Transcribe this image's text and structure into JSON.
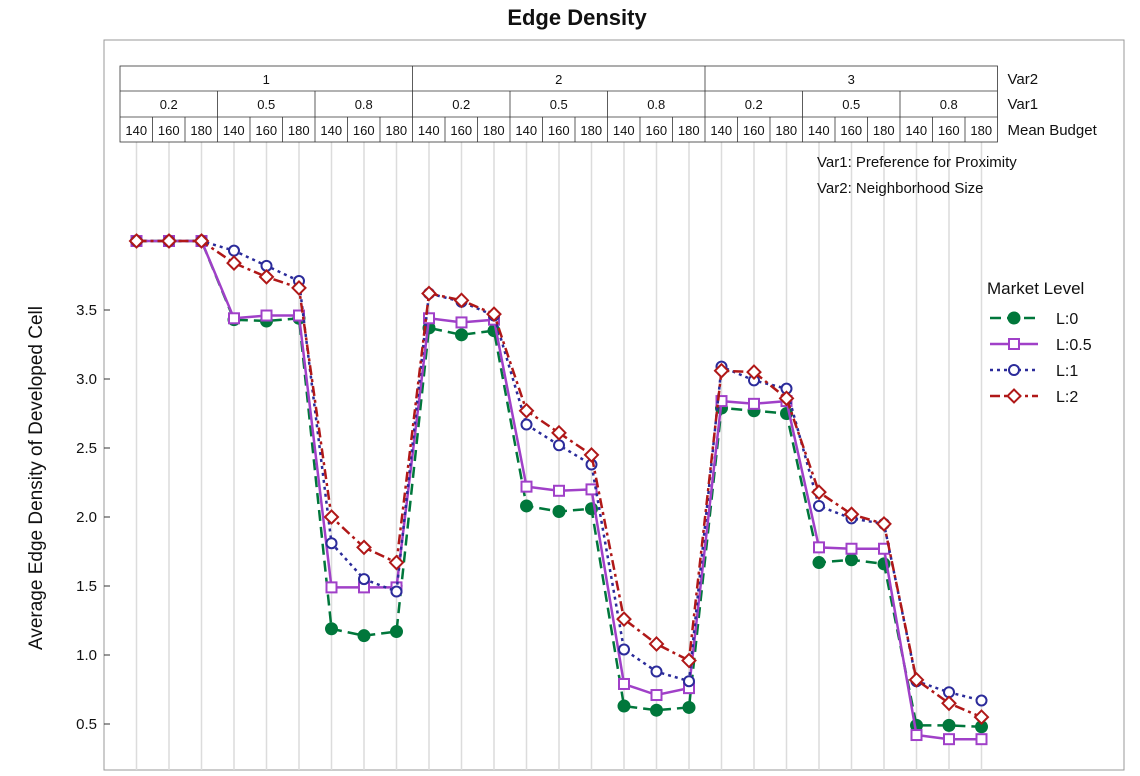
{
  "chart_data": {
    "type": "line",
    "title": "Edge Density",
    "ylabel": "Average Edge Density of Developed Cell",
    "ylim": [
      0.33,
      4.1
    ],
    "yticks": [
      "0.5",
      "1.0",
      "1.5",
      "2.0",
      "2.5",
      "3.0",
      "3.5"
    ],
    "header": {
      "var2_values": [
        "1",
        "2",
        "3"
      ],
      "var1_values": [
        "0.2",
        "0.5",
        "0.8"
      ],
      "budget_values": [
        "140",
        "160",
        "180"
      ],
      "row_labels": [
        "Var2",
        "Var1",
        "Mean Budget"
      ]
    },
    "notes": [
      "Var1: Preference for Proximity",
      "Var2: Neighborhood Size"
    ],
    "legend": {
      "title": "Market Level",
      "position": "right"
    },
    "x": [
      "1/0.2/140",
      "1/0.2/160",
      "1/0.2/180",
      "1/0.5/140",
      "1/0.5/160",
      "1/0.5/180",
      "1/0.8/140",
      "1/0.8/160",
      "1/0.8/180",
      "2/0.2/140",
      "2/0.2/160",
      "2/0.2/180",
      "2/0.5/140",
      "2/0.5/160",
      "2/0.5/180",
      "2/0.8/140",
      "2/0.8/160",
      "2/0.8/180",
      "3/0.2/140",
      "3/0.2/160",
      "3/0.2/180",
      "3/0.5/140",
      "3/0.5/160",
      "3/0.5/180",
      "3/0.8/140",
      "3/0.8/160",
      "3/0.8/180"
    ],
    "series": [
      {
        "name": "L:0",
        "color": "#00773b",
        "marker": "filled-circle",
        "dash": "dashed",
        "values": [
          4.0,
          4.0,
          4.0,
          3.43,
          3.42,
          3.44,
          1.19,
          1.14,
          1.17,
          3.37,
          3.32,
          3.35,
          2.08,
          2.04,
          2.06,
          0.63,
          0.6,
          0.62,
          2.79,
          2.77,
          2.75,
          1.67,
          1.69,
          1.66,
          0.49,
          0.49,
          0.48
        ]
      },
      {
        "name": "L:0.5",
        "color": "#a040c8",
        "marker": "open-square",
        "dash": "solid",
        "values": [
          4.0,
          4.0,
          4.0,
          3.44,
          3.46,
          3.46,
          1.49,
          1.49,
          1.49,
          3.44,
          3.41,
          3.43,
          2.22,
          2.19,
          2.2,
          0.79,
          0.71,
          0.76,
          2.84,
          2.82,
          2.84,
          1.78,
          1.77,
          1.77,
          0.42,
          0.39,
          0.39
        ]
      },
      {
        "name": "L:1",
        "color": "#2b2b9a",
        "marker": "open-circle",
        "dash": "dotted",
        "values": [
          4.0,
          4.0,
          4.0,
          3.93,
          3.82,
          3.71,
          1.81,
          1.55,
          1.46,
          3.62,
          3.56,
          3.46,
          2.67,
          2.52,
          2.38,
          1.04,
          0.88,
          0.81,
          3.09,
          2.99,
          2.93,
          2.08,
          1.99,
          1.95,
          0.81,
          0.73,
          0.67
        ]
      },
      {
        "name": "L:2",
        "color": "#b01818",
        "marker": "open-diamond",
        "dash": "dashdot",
        "values": [
          4.0,
          4.0,
          4.0,
          3.84,
          3.74,
          3.66,
          2.0,
          1.78,
          1.67,
          3.62,
          3.57,
          3.47,
          2.77,
          2.61,
          2.45,
          1.26,
          1.08,
          0.96,
          3.06,
          3.05,
          2.86,
          2.18,
          2.02,
          1.95,
          0.82,
          0.65,
          0.55
        ]
      }
    ]
  }
}
